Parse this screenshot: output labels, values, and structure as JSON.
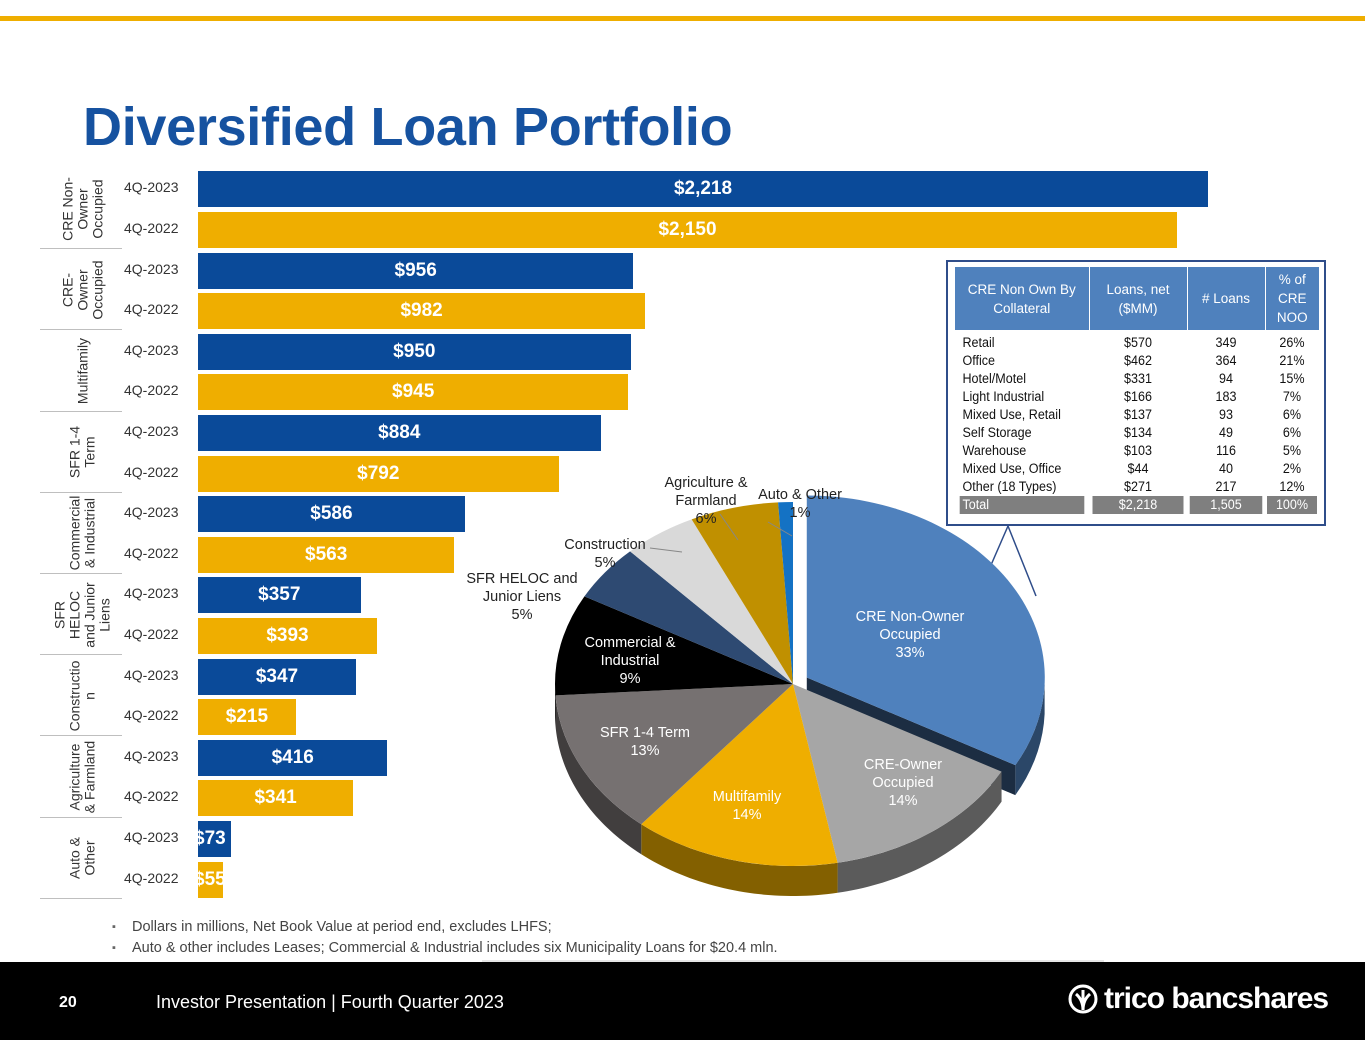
{
  "header": {
    "title": "Diversified Loan Portfolio"
  },
  "colors": {
    "accent_yellow": "#EFAE00",
    "brand_blue": "#1652A0",
    "bar_2023": "#0A4A99",
    "bar_2022": "#EFAE00"
  },
  "chart_data": [
    {
      "type": "bar",
      "orientation": "horizontal",
      "title": "",
      "xlabel": "",
      "ylabel": "",
      "periods": [
        "4Q-2023",
        "4Q-2022"
      ],
      "categories": [
        "CRE Non-Owner Occupied",
        "CRE-Owner Occupied",
        "Multifamily",
        "SFR 1-4 Term",
        "Commercial & Industrial",
        "SFR HELOC and Junior Liens",
        "Construction",
        "Agriculture & Farmland",
        "Auto & Other"
      ],
      "category_labels": [
        "CRE Non-\nOwner\nOccupied",
        "CRE-\nOwner\nOccupied",
        "Multifamily",
        "SFR 1-4\nTerm",
        "Commercial\n& Industrial",
        "SFR\nHELOC\nand Junior\nLiens",
        "Constructio\nn",
        "Agriculture\n& Farmland",
        "Auto &\nOther"
      ],
      "series": [
        {
          "name": "4Q-2023",
          "values": [
            2218,
            956,
            950,
            884,
            586,
            357,
            347,
            416,
            73
          ]
        },
        {
          "name": "4Q-2022",
          "values": [
            2150,
            982,
            945,
            792,
            563,
            393,
            215,
            341,
            55
          ]
        }
      ],
      "value_labels": {
        "4Q-2023": [
          "$2,218",
          "$956",
          "$950",
          "$884",
          "$586",
          "$357",
          "$347",
          "$416",
          "$73"
        ],
        "4Q-2022": [
          "$2,150",
          "$982",
          "$945",
          "$792",
          "$563",
          "$393",
          "$215",
          "$341",
          "$55"
        ]
      },
      "xlim": [
        0,
        2218
      ],
      "grid": false,
      "legend": "none"
    },
    {
      "type": "pie",
      "style": "3d-exploded",
      "title": "",
      "slices": [
        {
          "label": "CRE Non-Owner Occupied",
          "display": "CRE Non-Owner\nOccupied\n33%",
          "percent": 33,
          "color": "#4F81BD",
          "exploded": true
        },
        {
          "label": "CRE-Owner Occupied",
          "display": "CRE-Owner\nOccupied\n14%",
          "percent": 14,
          "color": "#A6A6A6"
        },
        {
          "label": "Multifamily",
          "display": "Multifamily\n14%",
          "percent": 14,
          "color": "#EFAE00"
        },
        {
          "label": "SFR 1-4 Term",
          "display": "SFR 1-4 Term\n13%",
          "percent": 13,
          "color": "#767171"
        },
        {
          "label": "Commercial & Industrial",
          "display": "Commercial &\nIndustrial\n9%",
          "percent": 9,
          "color": "#000000"
        },
        {
          "label": "SFR HELOC and Junior Liens",
          "display": "SFR HELOC and\nJunior Liens\n5%",
          "percent": 5,
          "color": "#2E4A72"
        },
        {
          "label": "Construction",
          "display": "Construction\n5%",
          "percent": 5,
          "color": "#D9D9D9"
        },
        {
          "label": "Agriculture & Farmland",
          "display": "Agriculture &\nFarmland\n6%",
          "percent": 6,
          "color": "#C09000"
        },
        {
          "label": "Auto & Other",
          "display": "Auto & Other\n1%",
          "percent": 1,
          "color": "#1472C4"
        }
      ]
    }
  ],
  "cre_table": {
    "headers": [
      "CRE Non Own By Collateral",
      "Loans, net ($MM)",
      "# Loans",
      "% of CRE NOO"
    ],
    "rows": [
      [
        "Retail",
        "$570",
        "349",
        "26%"
      ],
      [
        "Office",
        "$462",
        "364",
        "21%"
      ],
      [
        "Hotel/Motel",
        "$331",
        "94",
        "15%"
      ],
      [
        "Light Industrial",
        "$166",
        "183",
        "7%"
      ],
      [
        "Mixed Use, Retail",
        "$137",
        "93",
        "6%"
      ],
      [
        "Self Storage",
        "$134",
        "49",
        "6%"
      ],
      [
        "Warehouse",
        "$103",
        "116",
        "5%"
      ],
      [
        "Mixed Use, Office",
        "$44",
        "40",
        "2%"
      ],
      [
        "Other (18 Types)",
        "$271",
        "217",
        "12%"
      ]
    ],
    "total": [
      "Total",
      "$2,218",
      "1,505",
      "100%"
    ]
  },
  "notes": [
    "Dollars in millions, Net Book Value at period end, excludes LHFS;",
    "Auto & other includes Leases; Commercial & Industrial includes six Municipality Loans for $20.4 mln."
  ],
  "footer": {
    "page_number": "20",
    "text": "Investor Presentation | Fourth Quarter 2023",
    "brand": "trico bancshares"
  }
}
